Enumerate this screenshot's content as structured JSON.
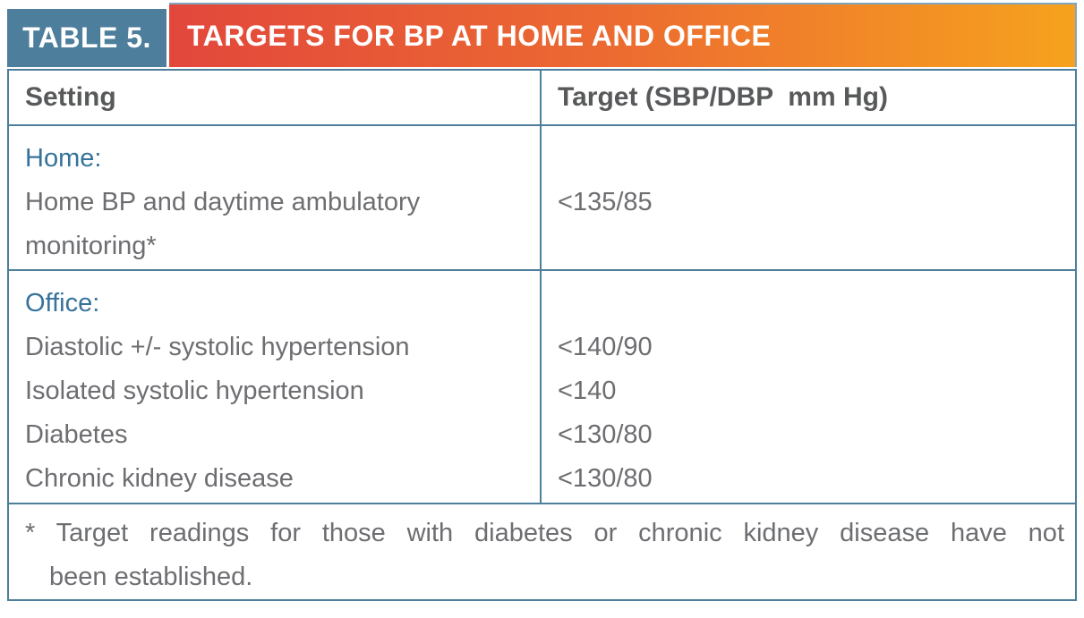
{
  "header": {
    "number": "TABLE 5.",
    "title": "TARGETS FOR BP AT HOME AND OFFICE"
  },
  "columns": {
    "setting": "Setting",
    "target": "Target (SBP/DBP  mm Hg)"
  },
  "sections": {
    "home": {
      "heading": "Home:",
      "item": "Home BP and daytime ambulatory monitoring*",
      "target": "<135/85"
    },
    "office": {
      "heading": "Office:",
      "items": [
        {
          "setting": "Diastolic +/- systolic hypertension",
          "target": "<140/90"
        },
        {
          "setting": "Isolated systolic hypertension",
          "target": "<140"
        },
        {
          "setting": "Diabetes",
          "target": "<130/80"
        },
        {
          "setting": "Chronic kidney disease",
          "target": "<130/80"
        }
      ]
    }
  },
  "footnote": {
    "line1": "* Target readings for those with diabetes or chronic kidney disease have not",
    "line2": "been established."
  },
  "colors": {
    "label_bg": "#4D7E9C",
    "grad_from": "#E2473C",
    "grad_to": "#F6A21E",
    "border": "#4D7E9C",
    "heading_text": "#36739A",
    "body_text": "#6D6E71",
    "header_text": "#58595B"
  }
}
